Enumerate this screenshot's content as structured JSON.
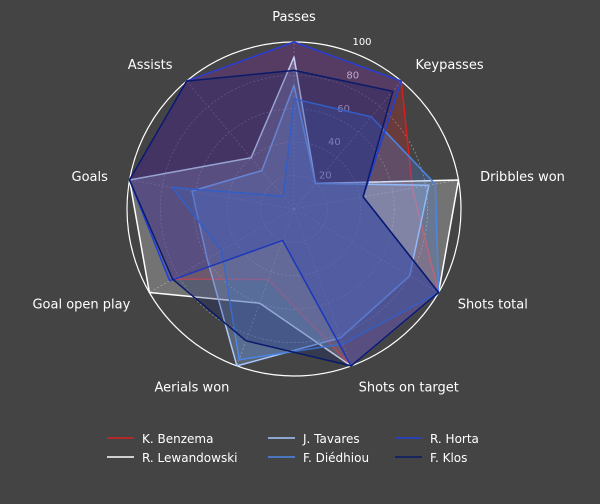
{
  "chart_data": {
    "type": "radar",
    "axes": [
      "Passes",
      "Keypasses",
      "Dribbles won",
      "Shots total",
      "Shots on target",
      "Aerials won",
      "Goal open play",
      "Goals",
      "Assists"
    ],
    "rlim": [
      0,
      100
    ],
    "radial_ticks": [
      20,
      40,
      60,
      80,
      100
    ],
    "grid": true,
    "legend_position": "bottom",
    "series": [
      {
        "name": "K. Benzema",
        "color": "#d62020",
        "values": [
          100,
          100,
          72,
          100,
          100,
          45,
          84,
          100,
          100
        ]
      },
      {
        "name": "R. Lewandowski",
        "color": "#ffffff",
        "values": [
          91,
          20,
          100,
          100,
          100,
          60,
          100,
          100,
          40
        ]
      },
      {
        "name": "J. Tavares",
        "color": "#a8c8ff",
        "values": [
          74,
          20,
          82,
          80,
          82,
          100,
          60,
          62,
          30
        ]
      },
      {
        "name": "F. Diédhiou",
        "color": "#4a86e8",
        "values": [
          66,
          72,
          86,
          100,
          86,
          96,
          50,
          74,
          10
        ]
      },
      {
        "name": "R. Horta",
        "color": "#2040d8",
        "values": [
          100,
          100,
          42,
          100,
          100,
          20,
          86,
          100,
          100
        ]
      },
      {
        "name": "F. Klos",
        "color": "#0a1a6a",
        "values": [
          83,
          92,
          42,
          100,
          100,
          84,
          84,
          100,
          100
        ]
      }
    ]
  }
}
